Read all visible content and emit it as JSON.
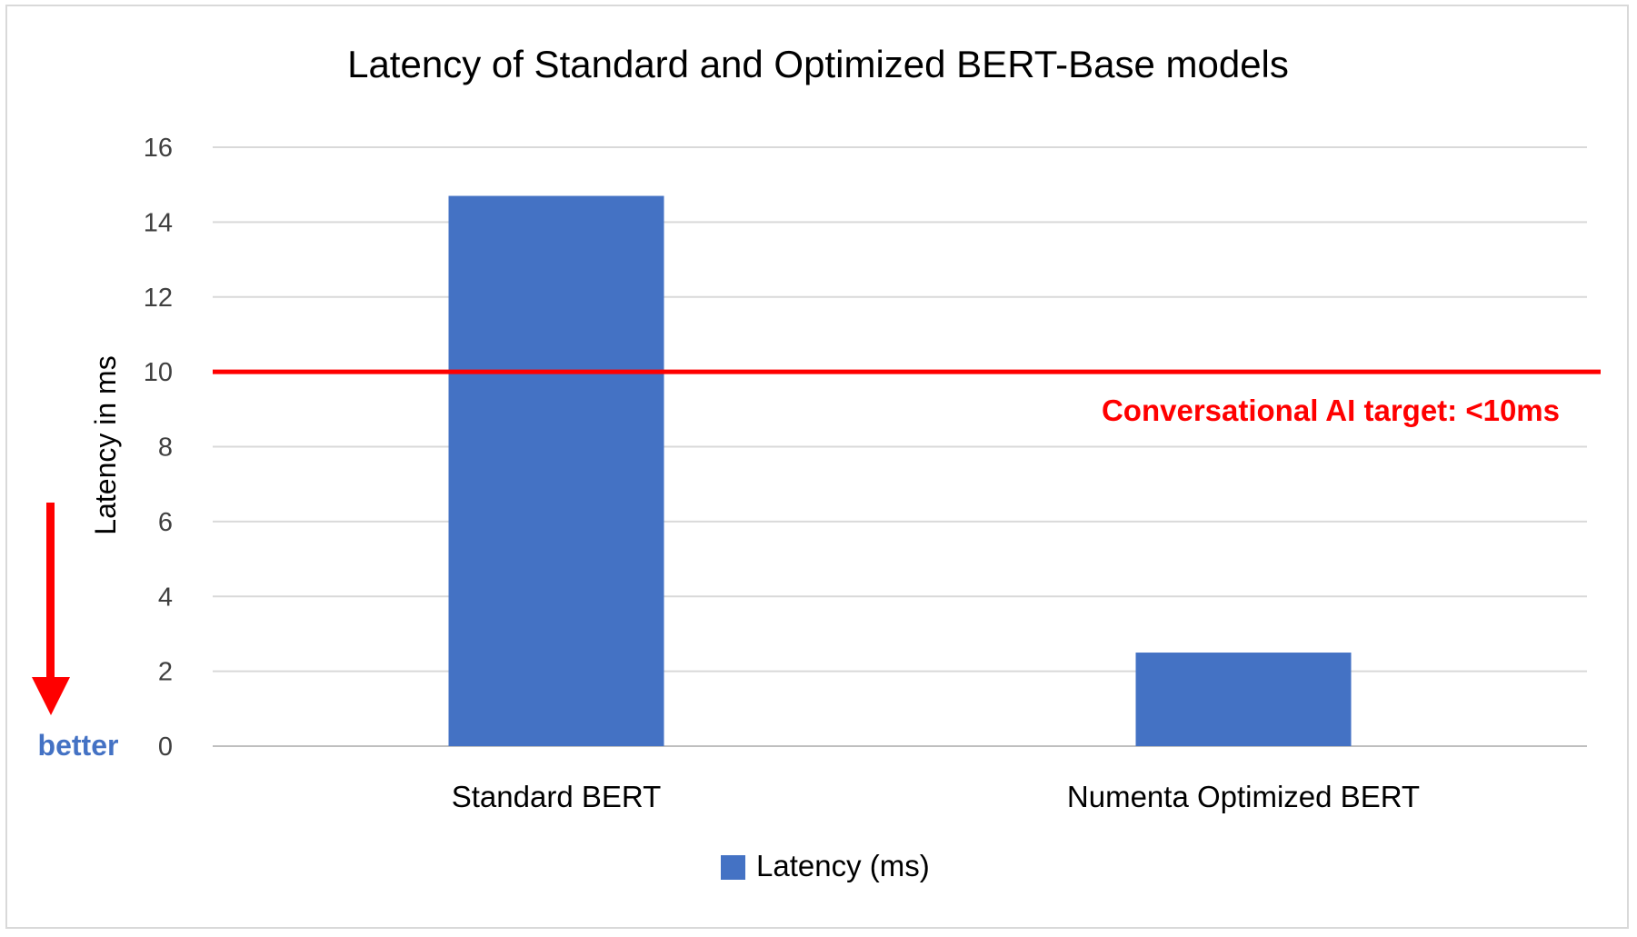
{
  "chart_data": {
    "type": "bar",
    "title": "Latency of Standard and Optimized BERT-Base models",
    "xlabel": "",
    "ylabel": "Latency in ms",
    "categories": [
      "Standard BERT",
      "Numenta Optimized BERT"
    ],
    "series": [
      {
        "name": "Latency (ms)",
        "values": [
          14.7,
          2.5
        ],
        "color": "#4472c4"
      }
    ],
    "ylim": [
      0,
      16
    ],
    "yticks": [
      0,
      2,
      4,
      6,
      8,
      10,
      12,
      14,
      16
    ],
    "grid": true,
    "legend": "bottom",
    "reference_line": {
      "value": 10,
      "color": "#ff0000",
      "label": "Conversational AI target: <10ms"
    },
    "direction_hint": {
      "label": "better",
      "arrow_color": "#ff0000",
      "label_color": "#4472c4"
    }
  }
}
